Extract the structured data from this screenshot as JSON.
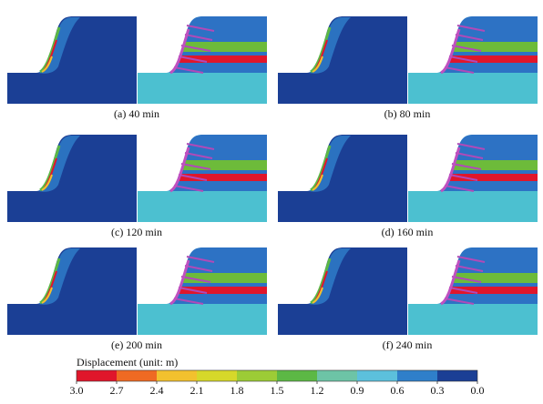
{
  "panels": [
    {
      "caption": "(a) 40 min"
    },
    {
      "caption": "(b) 80 min"
    },
    {
      "caption": "(c) 120 min"
    },
    {
      "caption": "(d) 160 min"
    },
    {
      "caption": "(e) 200 min"
    },
    {
      "caption": "(f) 240 min"
    }
  ],
  "colorbar": {
    "label": "Displacement (unit: m)",
    "ticks": [
      {
        "value": 3,
        "label": "3.0"
      },
      {
        "value": 2.7,
        "label": "2.7"
      },
      {
        "value": 2.4,
        "label": "2.4"
      },
      {
        "value": 2.1,
        "label": "2.1"
      },
      {
        "value": 1.8,
        "label": "1.8"
      },
      {
        "value": 1.5,
        "label": "1.5"
      },
      {
        "value": 1.2,
        "label": "1.2"
      },
      {
        "value": 0.9,
        "label": "0.9"
      },
      {
        "value": 0.6,
        "label": "0.6"
      },
      {
        "value": 0.3,
        "label": "0.3"
      },
      {
        "value": 0,
        "label": "0.0"
      }
    ],
    "colors": [
      "#e0162b",
      "#ef6a23",
      "#f2c12e",
      "#d6d82a",
      "#9ccc36",
      "#5cb845",
      "#6dc4a6",
      "#5cc0dc",
      "#2f7fca",
      "#1b3f95"
    ]
  }
}
